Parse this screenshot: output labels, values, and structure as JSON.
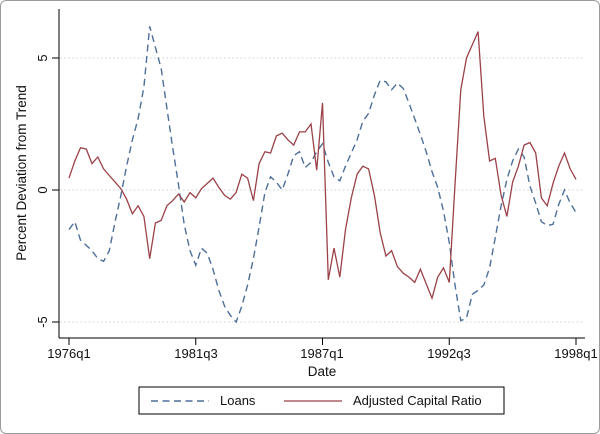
{
  "chart_data": {
    "type": "line",
    "title": "",
    "xlabel": "Date",
    "ylabel": "Percent Deviation from Trend",
    "x_start": "1976q1",
    "x_end": "1998q1",
    "x_frequency": "quarterly",
    "n_points": 89,
    "ylim": [
      -5.6,
      6.9
    ],
    "y_ticks": [
      5,
      0,
      -5
    ],
    "y_tick_labels": [
      "5",
      "0",
      "-5"
    ],
    "x_ticks": [
      {
        "q": 0,
        "label": "1976q1"
      },
      {
        "q": 22,
        "label": "1981q3"
      },
      {
        "q": 44,
        "label": "1987q1"
      },
      {
        "q": 66,
        "label": "1992q3"
      },
      {
        "q": 88,
        "label": "1998q1"
      }
    ],
    "grid": "horizontal dotted gridlines at y ticks",
    "legend_position": "bottom-center boxed",
    "series": [
      {
        "name": "Loans",
        "color": "#4d6f99",
        "style": "dashed",
        "values": [
          -1.5,
          -1.2,
          -1.9,
          -2.1,
          -2.3,
          -2.6,
          -2.7,
          -2.3,
          -1.2,
          -0.2,
          0.9,
          1.9,
          2.7,
          3.9,
          6.2,
          5.4,
          4.6,
          3.1,
          1.6,
          0.2,
          -1.3,
          -2.3,
          -2.85,
          -2.2,
          -2.4,
          -3.0,
          -3.8,
          -4.4,
          -4.75,
          -5.0,
          -4.4,
          -3.6,
          -2.6,
          -1.4,
          -0.1,
          0.5,
          0.3,
          0.0,
          0.6,
          1.3,
          1.45,
          0.85,
          1.05,
          1.45,
          1.75,
          1.05,
          0.5,
          0.35,
          0.9,
          1.4,
          1.9,
          2.6,
          2.9,
          3.6,
          4.15,
          4.1,
          3.8,
          4.05,
          3.85,
          3.3,
          2.7,
          2.1,
          1.45,
          0.7,
          0.1,
          -0.8,
          -2.0,
          -3.6,
          -4.95,
          -4.85,
          -3.95,
          -3.8,
          -3.6,
          -2.95,
          -1.8,
          -0.6,
          0.4,
          1.1,
          1.55,
          1.25,
          0.15,
          -0.5,
          -1.2,
          -1.35,
          -1.3,
          -0.55,
          0.0,
          -0.5,
          -0.85
        ]
      },
      {
        "name": "Adjusted Capital Ratio",
        "color": "#9a4248",
        "style": "solid",
        "values": [
          0.45,
          1.1,
          1.6,
          1.55,
          1.0,
          1.25,
          0.8,
          0.55,
          0.3,
          0.05,
          -0.35,
          -0.9,
          -0.6,
          -1.0,
          -2.6,
          -1.25,
          -1.15,
          -0.6,
          -0.4,
          -0.15,
          -0.45,
          -0.1,
          -0.3,
          0.05,
          0.25,
          0.45,
          0.1,
          -0.2,
          -0.35,
          -0.1,
          0.6,
          0.45,
          -0.4,
          1.0,
          1.45,
          1.4,
          2.05,
          2.15,
          1.9,
          1.7,
          2.2,
          2.2,
          2.5,
          0.75,
          3.3,
          -3.4,
          -2.2,
          -3.3,
          -1.5,
          -0.3,
          0.6,
          0.9,
          0.8,
          -0.2,
          -1.6,
          -2.5,
          -2.3,
          -2.9,
          -3.15,
          -3.3,
          -3.5,
          -3.0,
          -3.55,
          -4.1,
          -3.3,
          -2.95,
          -3.5,
          0.2,
          3.8,
          5.0,
          5.5,
          6.0,
          2.8,
          1.1,
          1.2,
          -0.2,
          -1.0,
          0.3,
          0.9,
          1.7,
          1.8,
          1.4,
          -0.3,
          -0.6,
          0.25,
          0.9,
          1.4,
          0.8,
          0.4
        ]
      }
    ]
  }
}
